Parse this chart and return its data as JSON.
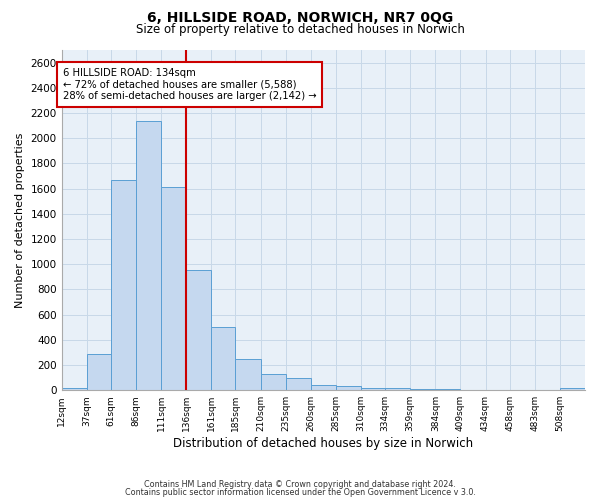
{
  "title": "6, HILLSIDE ROAD, NORWICH, NR7 0QG",
  "subtitle": "Size of property relative to detached houses in Norwich",
  "xlabel": "Distribution of detached houses by size in Norwich",
  "ylabel": "Number of detached properties",
  "bin_labels": [
    "12sqm",
    "37sqm",
    "61sqm",
    "86sqm",
    "111sqm",
    "136sqm",
    "161sqm",
    "185sqm",
    "210sqm",
    "235sqm",
    "260sqm",
    "285sqm",
    "310sqm",
    "334sqm",
    "359sqm",
    "384sqm",
    "409sqm",
    "434sqm",
    "458sqm",
    "483sqm",
    "508sqm"
  ],
  "bin_edges": [
    12,
    37,
    61,
    86,
    111,
    136,
    161,
    185,
    210,
    235,
    260,
    285,
    310,
    334,
    359,
    384,
    409,
    434,
    458,
    483,
    508
  ],
  "bar_heights": [
    20,
    290,
    1670,
    2140,
    1610,
    955,
    505,
    250,
    125,
    95,
    40,
    35,
    20,
    15,
    10,
    10,
    5,
    5,
    5,
    0,
    20
  ],
  "bar_color": "#c5d8ef",
  "bar_edge_color": "#5a9fd4",
  "vline_x": 136,
  "vline_color": "#cc0000",
  "annotation_title": "6 HILLSIDE ROAD: 134sqm",
  "annotation_line1": "← 72% of detached houses are smaller (5,588)",
  "annotation_line2": "28% of semi-detached houses are larger (2,142) →",
  "annotation_box_color": "#ffffff",
  "annotation_box_edge": "#cc0000",
  "ylim": [
    0,
    2700
  ],
  "yticks": [
    0,
    200,
    400,
    600,
    800,
    1000,
    1200,
    1400,
    1600,
    1800,
    2000,
    2200,
    2400,
    2600
  ],
  "grid_color": "#c8d8e8",
  "bg_color": "#e8f0f8",
  "fig_bg_color": "#ffffff",
  "footer1": "Contains HM Land Registry data © Crown copyright and database right 2024.",
  "footer2": "Contains public sector information licensed under the Open Government Licence v 3.0."
}
